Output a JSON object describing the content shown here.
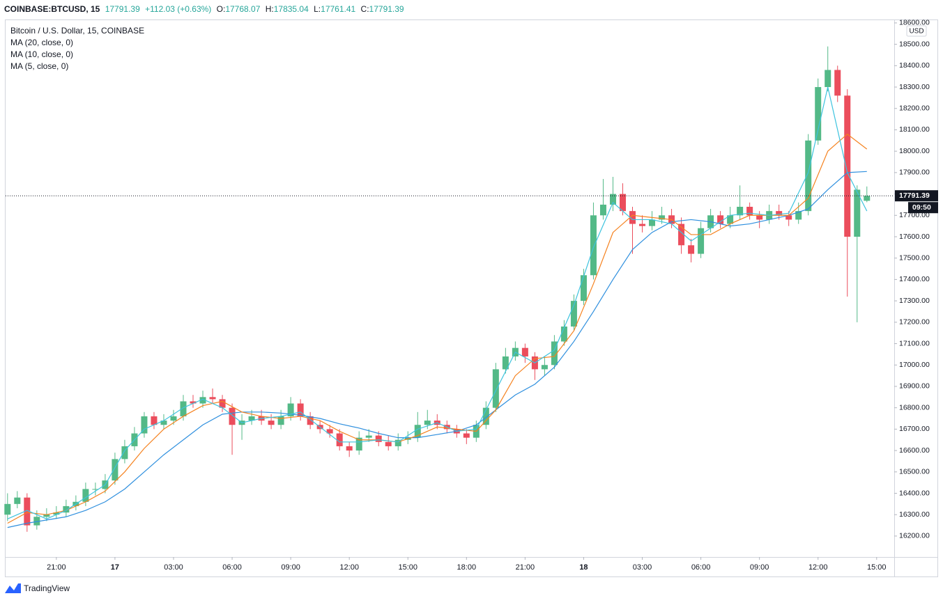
{
  "header": {
    "symbol": "COINBASE:BTCUSD, 15",
    "change": "+112.03 (+0.63%)",
    "ohlc_labels": [
      "O:",
      "H:",
      "L:",
      "C:"
    ]
  },
  "brand": "TradingView",
  "chart_data": {
    "type": "candlestick",
    "title": "Bitcoin / U.S. Dollar, 15, COINBASE",
    "currency": "USD",
    "countdown": "09:50",
    "up_color": "#53b987",
    "down_color": "#eb4d5c",
    "x": [
      -5.5,
      -5,
      -4.5,
      -4,
      -3.5,
      -3,
      -2.5,
      -2,
      -1.5,
      -1,
      -0.5,
      0,
      0.5,
      1,
      1.5,
      2,
      2.5,
      3,
      3.5,
      4,
      4.5,
      5,
      5.5,
      6,
      6.5,
      7,
      7.5,
      8,
      8.5,
      9,
      9.5,
      10,
      10.5,
      11,
      11.5,
      12,
      12.5,
      13,
      13.5,
      14,
      14.5,
      15,
      15.5,
      16,
      16.5,
      17,
      17.5,
      18,
      18.5,
      19,
      19.5,
      20,
      20.5,
      21,
      21.5,
      22,
      22.5,
      23,
      23.5,
      24,
      24.5,
      25,
      25.5,
      26,
      26.5,
      27,
      27.5,
      28,
      28.5,
      29,
      29.5,
      30,
      30.5,
      31,
      31.5,
      32,
      32.5,
      33,
      33.5,
      34,
      34.5,
      35,
      35.5,
      36,
      36.5,
      37,
      37.5,
      38,
      38.5
    ],
    "open": [
      16300,
      16350,
      16380,
      16250,
      16290,
      16300,
      16310,
      16340,
      16360,
      16420,
      16420,
      16460,
      16560,
      16620,
      16680,
      16760,
      16720,
      16740,
      16760,
      16830,
      16820,
      16850,
      16840,
      16800,
      16720,
      16740,
      16760,
      16740,
      16720,
      16760,
      16820,
      16760,
      16720,
      16700,
      16680,
      16620,
      16600,
      16660,
      16670,
      16640,
      16620,
      16650,
      16660,
      16720,
      16740,
      16720,
      16700,
      16680,
      16660,
      16720,
      16800,
      16980,
      17040,
      17080,
      17040,
      16980,
      17000,
      17110,
      17180,
      17300,
      17420,
      17700,
      17750,
      17800,
      17720,
      17660,
      17650,
      17680,
      17700,
      17660,
      17560,
      17520,
      17640,
      17700,
      17660,
      17700,
      17740,
      17700,
      17680,
      17720,
      17700,
      17680,
      17720,
      18050,
      18300,
      18380,
      18260,
      17600,
      17768.07
    ],
    "high": [
      16400,
      16410,
      16400,
      16320,
      16330,
      16340,
      16370,
      16390,
      16450,
      16450,
      16490,
      16590,
      16650,
      16710,
      16780,
      16780,
      16770,
      16790,
      16860,
      16860,
      16880,
      16890,
      16860,
      16820,
      16770,
      16790,
      16790,
      16770,
      16790,
      16850,
      16840,
      16780,
      16740,
      16720,
      16700,
      16640,
      16690,
      16700,
      16690,
      16670,
      16680,
      16690,
      16780,
      16790,
      16770,
      16740,
      16720,
      16700,
      16740,
      16830,
      17010,
      17080,
      17110,
      17100,
      17060,
      17040,
      17140,
      17210,
      17330,
      17450,
      17760,
      17870,
      17880,
      17850,
      17740,
      17700,
      17720,
      17740,
      17730,
      17690,
      17590,
      17670,
      17730,
      17720,
      17740,
      17840,
      17760,
      17720,
      17750,
      17750,
      17720,
      17760,
      18080,
      18340,
      18490,
      18400,
      18290,
      17840,
      17835.04
    ],
    "low": [
      16270,
      16330,
      16220,
      16230,
      16270,
      16280,
      16290,
      16320,
      16340,
      16390,
      16400,
      16440,
      16540,
      16600,
      16660,
      16700,
      16700,
      16720,
      16740,
      16800,
      16800,
      16820,
      16780,
      16580,
      16650,
      16720,
      16720,
      16700,
      16700,
      16740,
      16740,
      16700,
      16680,
      16660,
      16600,
      16570,
      16580,
      16640,
      16620,
      16600,
      16600,
      16630,
      16640,
      16700,
      16700,
      16680,
      16660,
      16630,
      16640,
      16700,
      16780,
      16960,
      17020,
      17010,
      16930,
      16950,
      16980,
      17090,
      17160,
      17280,
      17400,
      17680,
      17720,
      17700,
      17520,
      17620,
      17630,
      17660,
      17640,
      17520,
      17480,
      17500,
      17620,
      17640,
      17640,
      17680,
      17680,
      17640,
      17660,
      17680,
      17650,
      17660,
      17700,
      18030,
      18280,
      18230,
      17320,
      17200,
      17761.41
    ],
    "close": [
      16350,
      16380,
      16250,
      16290,
      16300,
      16310,
      16340,
      16360,
      16420,
      16420,
      16460,
      16560,
      16620,
      16680,
      16760,
      16720,
      16740,
      16760,
      16830,
      16820,
      16850,
      16840,
      16800,
      16720,
      16740,
      16760,
      16740,
      16720,
      16760,
      16820,
      16760,
      16720,
      16700,
      16680,
      16620,
      16600,
      16660,
      16670,
      16640,
      16620,
      16650,
      16660,
      16720,
      16740,
      16720,
      16700,
      16680,
      16660,
      16720,
      16800,
      16980,
      17040,
      17080,
      17040,
      16980,
      17000,
      17110,
      17180,
      17300,
      17420,
      17700,
      17750,
      17800,
      17720,
      17660,
      17650,
      17680,
      17700,
      17660,
      17560,
      17520,
      17640,
      17700,
      17660,
      17700,
      17740,
      17700,
      17680,
      17720,
      17700,
      17680,
      17720,
      18050,
      18300,
      18380,
      18260,
      17600,
      17820,
      17791.39
    ],
    "series": [
      {
        "name": "MA (20, close, 0)",
        "color": "#2e8fde",
        "x": [
          -5.5,
          -4.5,
          -3.5,
          -2.5,
          -1.5,
          -0.5,
          0.5,
          1.5,
          2.5,
          3.5,
          4.5,
          5.5,
          6.5,
          7.5,
          8.5,
          9.5,
          10.5,
          11.5,
          12.5,
          13.5,
          14.5,
          15.5,
          16.5,
          17.5,
          18.5,
          19.5,
          20.5,
          21.5,
          22.5,
          23.5,
          24.5,
          25.5,
          26.5,
          27.5,
          28.5,
          29.5,
          30.5,
          31.5,
          32.5,
          33.5,
          34.5,
          35.5,
          36.5,
          37.5,
          38.5
        ],
        "values": [
          16240,
          16260,
          16275,
          16290,
          16320,
          16360,
          16420,
          16500,
          16580,
          16650,
          16720,
          16770,
          16780,
          16780,
          16775,
          16765,
          16750,
          16725,
          16705,
          16680,
          16660,
          16660,
          16675,
          16690,
          16720,
          16790,
          16860,
          16910,
          16990,
          17110,
          17250,
          17400,
          17540,
          17620,
          17670,
          17680,
          17670,
          17650,
          17660,
          17680,
          17700,
          17730,
          17820,
          17900,
          17905
        ]
      },
      {
        "name": "MA (10, close, 0)",
        "color": "#f5821f",
        "x": [
          -5.5,
          -4.5,
          -3.5,
          -2.5,
          -1.5,
          -0.5,
          0.5,
          1.5,
          2.5,
          3.5,
          4.5,
          5.5,
          6.5,
          7.5,
          8.5,
          9.5,
          10.5,
          11.5,
          12.5,
          13.5,
          14.5,
          15.5,
          16.5,
          17.5,
          18.5,
          19.5,
          20.5,
          21.5,
          22.5,
          23.5,
          24.5,
          25.5,
          26.5,
          27.5,
          28.5,
          29.5,
          30.5,
          31.5,
          32.5,
          33.5,
          34.5,
          35.5,
          36.5,
          37.5,
          38.5
        ],
        "values": [
          16260,
          16310,
          16300,
          16320,
          16360,
          16410,
          16500,
          16610,
          16700,
          16760,
          16810,
          16830,
          16780,
          16760,
          16750,
          16760,
          16740,
          16690,
          16650,
          16650,
          16640,
          16670,
          16710,
          16700,
          16690,
          16790,
          16950,
          17030,
          17040,
          17160,
          17380,
          17620,
          17700,
          17690,
          17680,
          17610,
          17610,
          17660,
          17700,
          17700,
          17700,
          17780,
          18000,
          18080,
          18010
        ]
      },
      {
        "name": "MA (5, close, 0)",
        "color": "#3cc3de",
        "x": [
          -5.5,
          -4.5,
          -3.5,
          -2.5,
          -1.5,
          -0.5,
          0.5,
          1.5,
          2.5,
          3.5,
          4.5,
          5.5,
          6.5,
          7.5,
          8.5,
          9.5,
          10.5,
          11.5,
          12.5,
          13.5,
          14.5,
          15.5,
          16.5,
          17.5,
          18.5,
          19.5,
          20.5,
          21.5,
          22.5,
          23.5,
          24.5,
          25.5,
          26.5,
          27.5,
          28.5,
          29.5,
          30.5,
          31.5,
          32.5,
          33.5,
          34.5,
          35.5,
          36.5,
          37.5,
          38.5
        ],
        "values": [
          16280,
          16320,
          16280,
          16320,
          16380,
          16440,
          16600,
          16700,
          16740,
          16800,
          16840,
          16800,
          16730,
          16750,
          16760,
          16780,
          16710,
          16640,
          16640,
          16650,
          16640,
          16700,
          16730,
          16690,
          16700,
          16880,
          17060,
          17010,
          17070,
          17280,
          17550,
          17760,
          17680,
          17680,
          17660,
          17580,
          17640,
          17700,
          17710,
          17700,
          17710,
          17900,
          18300,
          17900,
          17720
        ]
      }
    ],
    "xlim": [
      -5.6,
      39.9
    ],
    "xticks": [
      {
        "value": -3,
        "label": "21:00"
      },
      {
        "value": 0,
        "label": "17"
      },
      {
        "value": 3,
        "label": "03:00"
      },
      {
        "value": 6,
        "label": "06:00"
      },
      {
        "value": 9,
        "label": "09:00"
      },
      {
        "value": 12,
        "label": "12:00"
      },
      {
        "value": 15,
        "label": "15:00"
      },
      {
        "value": 18,
        "label": "18:00"
      },
      {
        "value": 21,
        "label": "21:00"
      },
      {
        "value": 24,
        "label": "18"
      },
      {
        "value": 27,
        "label": "03:00"
      },
      {
        "value": 30,
        "label": "06:00"
      },
      {
        "value": 33,
        "label": "09:00"
      },
      {
        "value": 36,
        "label": "12:00"
      },
      {
        "value": 39,
        "label": "15:00"
      }
    ],
    "ylim": [
      16102,
      18616
    ],
    "yticks": [
      {
        "value": 16200,
        "label": "16200.00"
      },
      {
        "value": 16300,
        "label": "16300.00"
      },
      {
        "value": 16400,
        "label": "16400.00"
      },
      {
        "value": 16500,
        "label": "16500.00"
      },
      {
        "value": 16600,
        "label": "16600.00"
      },
      {
        "value": 16700,
        "label": "16700.00"
      },
      {
        "value": 16800,
        "label": "16800.00"
      },
      {
        "value": 16900,
        "label": "16900.00"
      },
      {
        "value": 17000,
        "label": "17000.00"
      },
      {
        "value": 17100,
        "label": "17100.00"
      },
      {
        "value": 17200,
        "label": "17200.00"
      },
      {
        "value": 17300,
        "label": "17300.00"
      },
      {
        "value": 17400,
        "label": "17400.00"
      },
      {
        "value": 17500,
        "label": "17500.00"
      },
      {
        "value": 17600,
        "label": "17600.00"
      },
      {
        "value": 17700,
        "label": "17700.00"
      },
      {
        "value": 17800,
        "label": "17800.00"
      },
      {
        "value": 17900,
        "label": "17900.00"
      },
      {
        "value": 18000,
        "label": "18000.00"
      },
      {
        "value": 18100,
        "label": "18100.00"
      },
      {
        "value": 18200,
        "label": "18200.00"
      },
      {
        "value": 18300,
        "label": "18300.00"
      },
      {
        "value": 18400,
        "label": "18400.00"
      },
      {
        "value": 18500,
        "label": "18500.00"
      },
      {
        "value": 18600,
        "label": "18600.00"
      }
    ],
    "grid": false
  }
}
